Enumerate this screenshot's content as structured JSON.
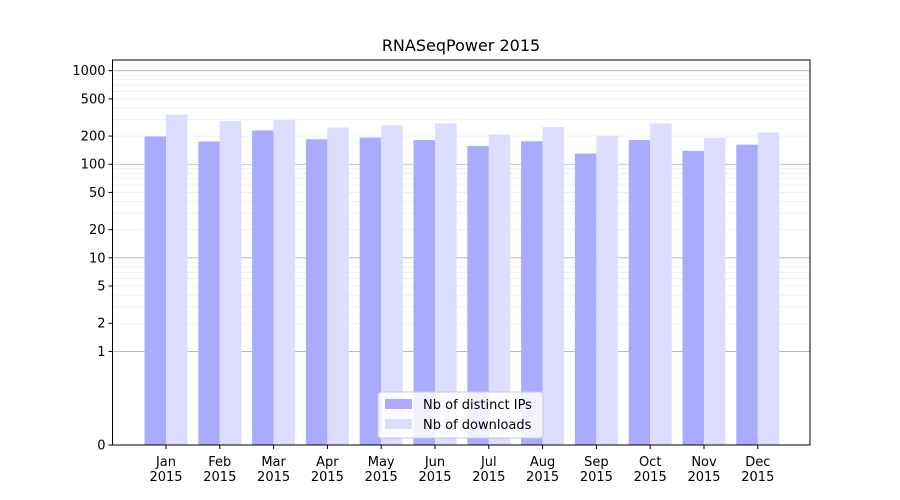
{
  "chart_data": {
    "type": "bar",
    "title": "RNASeqPower 2015",
    "xlabel": "",
    "ylabel": "",
    "yscale": "symlog",
    "ylim": [
      0,
      1300
    ],
    "yticks": [
      0,
      1,
      2,
      5,
      10,
      20,
      50,
      100,
      200,
      500,
      1000
    ],
    "categories": [
      [
        "Jan",
        "2015"
      ],
      [
        "Feb",
        "2015"
      ],
      [
        "Mar",
        "2015"
      ],
      [
        "Apr",
        "2015"
      ],
      [
        "May",
        "2015"
      ],
      [
        "Jun",
        "2015"
      ],
      [
        "Jul",
        "2015"
      ],
      [
        "Aug",
        "2015"
      ],
      [
        "Sep",
        "2015"
      ],
      [
        "Oct",
        "2015"
      ],
      [
        "Nov",
        "2015"
      ],
      [
        "Dec",
        "2015"
      ]
    ],
    "series": [
      {
        "name": "Nb of distinct IPs",
        "color": "#aaaaff",
        "values": [
          198,
          175,
          230,
          185,
          193,
          181,
          157,
          176,
          130,
          181,
          139,
          162
        ]
      },
      {
        "name": "Nb of downloads",
        "color": "#ddddff",
        "values": [
          340,
          290,
          298,
          247,
          260,
          273,
          208,
          250,
          201,
          272,
          192,
          219
        ]
      }
    ],
    "grid": true,
    "legend_position": "bottom-center"
  }
}
